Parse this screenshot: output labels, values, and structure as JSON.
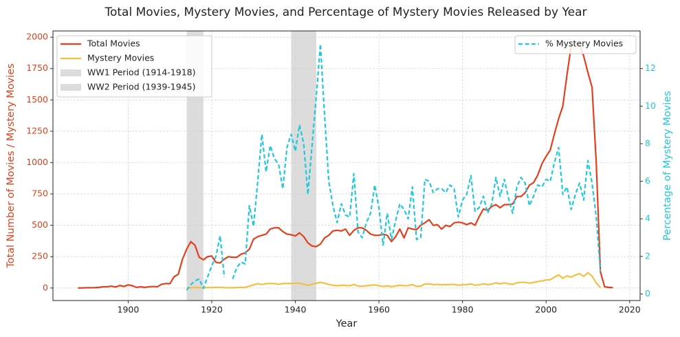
{
  "chart_data": {
    "type": "line",
    "title": "Total Movies, Mystery Movies, and Percentage of Mystery Movies Released by Year",
    "x_label": "Year",
    "y_label": "Total Number of Movies / Mystery Movies",
    "y2_label": "Percentage of Mystery Movies",
    "xlim": [
      1882,
      2022.5
    ],
    "ylim": [
      -100,
      2050
    ],
    "y2lim": [
      -0.35,
      14.0
    ],
    "xticks": [
      1900,
      1920,
      1940,
      1960,
      1980,
      2000,
      2020
    ],
    "yticks": [
      0,
      250,
      500,
      750,
      1000,
      1250,
      1500,
      1750,
      2000
    ],
    "y2ticks": [
      0,
      2,
      4,
      6,
      8,
      10,
      12
    ],
    "grid": true,
    "legend": {
      "y": "upper left",
      "y2": "upper right"
    },
    "x": [
      1888,
      1889,
      1890,
      1891,
      1892,
      1893,
      1894,
      1895,
      1896,
      1897,
      1898,
      1899,
      1900,
      1901,
      1902,
      1903,
      1904,
      1905,
      1906,
      1907,
      1908,
      1909,
      1910,
      1911,
      1912,
      1913,
      1914,
      1915,
      1916,
      1917,
      1918,
      1919,
      1920,
      1921,
      1922,
      1923,
      1924,
      1925,
      1926,
      1927,
      1928,
      1929,
      1930,
      1931,
      1932,
      1933,
      1934,
      1935,
      1936,
      1937,
      1938,
      1939,
      1940,
      1941,
      1942,
      1943,
      1944,
      1945,
      1946,
      1947,
      1948,
      1949,
      1950,
      1951,
      1952,
      1953,
      1954,
      1955,
      1956,
      1957,
      1958,
      1959,
      1960,
      1961,
      1962,
      1963,
      1964,
      1965,
      1966,
      1967,
      1968,
      1969,
      1970,
      1971,
      1972,
      1973,
      1974,
      1975,
      1976,
      1977,
      1978,
      1979,
      1980,
      1981,
      1982,
      1983,
      1984,
      1985,
      1986,
      1987,
      1988,
      1989,
      1990,
      1991,
      1992,
      1993,
      1994,
      1995,
      1996,
      1997,
      1998,
      1999,
      2000,
      2001,
      2002,
      2003,
      2004,
      2005,
      2006,
      2007,
      2008,
      2009,
      2010,
      2011,
      2012,
      2013,
      2014,
      2015,
      2016
    ],
    "series": [
      {
        "name": "Total Movies",
        "color": "#e2401c",
        "axis": "y",
        "dashed": false,
        "values": [
          0,
          1,
          2,
          2,
          3,
          5,
          10,
          10,
          15,
          8,
          20,
          12,
          25,
          18,
          5,
          10,
          5,
          10,
          12,
          10,
          30,
          35,
          35,
          90,
          110,
          230,
          310,
          370,
          340,
          245,
          225,
          250,
          255,
          205,
          200,
          230,
          250,
          245,
          245,
          270,
          280,
          310,
          390,
          410,
          420,
          430,
          470,
          480,
          480,
          450,
          430,
          425,
          415,
          440,
          410,
          360,
          335,
          330,
          350,
          400,
          420,
          455,
          460,
          455,
          470,
          420,
          460,
          480,
          480,
          460,
          430,
          420,
          420,
          430,
          420,
          370,
          410,
          470,
          400,
          480,
          470,
          465,
          500,
          520,
          545,
          500,
          505,
          470,
          500,
          490,
          520,
          525,
          520,
          505,
          520,
          500,
          570,
          630,
          620,
          650,
          665,
          640,
          665,
          665,
          670,
          730,
          730,
          760,
          820,
          840,
          900,
          990,
          1050,
          1100,
          1230,
          1350,
          1450,
          1700,
          1930,
          1950,
          1940,
          1850,
          1720,
          1600,
          1000,
          130,
          10,
          5,
          3
        ]
      },
      {
        "name": "Mystery Movies",
        "color": "#f5c040",
        "axis": "y",
        "dashed": false,
        "values": [
          null,
          null,
          null,
          null,
          null,
          null,
          null,
          null,
          null,
          null,
          null,
          null,
          null,
          null,
          null,
          null,
          null,
          null,
          null,
          null,
          null,
          null,
          null,
          null,
          null,
          null,
          2,
          3,
          4,
          3,
          2,
          3,
          4,
          5,
          6,
          3,
          2,
          2,
          4,
          5,
          5,
          15,
          25,
          35,
          28,
          35,
          36,
          35,
          30,
          35,
          37,
          36,
          38,
          38,
          30,
          20,
          30,
          38,
          45,
          38,
          28,
          22,
          18,
          22,
          20,
          18,
          28,
          16,
          14,
          18,
          22,
          24,
          19,
          12,
          18,
          11,
          16,
          22,
          18,
          19,
          27,
          13,
          15,
          32,
          33,
          27,
          28,
          26,
          27,
          28,
          29,
          22,
          26,
          27,
          33,
          22,
          26,
          33,
          27,
          31,
          41,
          33,
          41,
          34,
          29,
          42,
          45,
          45,
          39,
          44,
          52,
          56,
          64,
          66,
          86,
          105,
          77,
          97,
          87,
          103,
          114,
          93,
          122,
          95,
          41,
          2,
          null,
          null,
          null
        ]
      },
      {
        "name": "% Mystery Movies",
        "color": "#1fc8dc",
        "axis": "y2",
        "dashed": true,
        "values": [
          null,
          null,
          null,
          null,
          null,
          null,
          null,
          null,
          null,
          null,
          null,
          null,
          null,
          null,
          null,
          null,
          null,
          null,
          null,
          null,
          null,
          null,
          null,
          null,
          null,
          null,
          0.2,
          0.5,
          0.7,
          0.8,
          0.3,
          0.9,
          1.5,
          2.0,
          3.1,
          0.9,
          null,
          0.8,
          1.4,
          1.7,
          1.6,
          4.7,
          3.6,
          6.0,
          8.5,
          6.5,
          7.9,
          7.2,
          6.9,
          5.6,
          7.8,
          8.5,
          7.6,
          9.0,
          8.0,
          5.3,
          7.9,
          10.5,
          13.3,
          9.5,
          6.0,
          4.7,
          3.8,
          4.8,
          4.2,
          4.1,
          6.4,
          3.3,
          3.0,
          3.8,
          4.3,
          5.8,
          4.6,
          2.6,
          4.3,
          2.9,
          3.9,
          4.8,
          4.5,
          4.0,
          5.7,
          2.9,
          3.0,
          6.1,
          6.0,
          5.4,
          5.6,
          5.6,
          5.4,
          5.8,
          5.6,
          4.1,
          5.0,
          5.3,
          6.3,
          4.4,
          4.6,
          5.2,
          4.3,
          4.8,
          6.2,
          5.2,
          6.1,
          5.1,
          4.3,
          5.7,
          6.2,
          5.9,
          4.7,
          5.2,
          5.8,
          5.7,
          6.1,
          6.0,
          7.0,
          7.8,
          5.3,
          5.7,
          4.5,
          5.3,
          5.9,
          5.0,
          7.1,
          5.9,
          4.1,
          1.2,
          null,
          null,
          null
        ]
      }
    ],
    "spans": [
      {
        "name": "WW1 Period (1914-1918)",
        "start": 1914,
        "end": 1918,
        "color": "#d3d3d3"
      },
      {
        "name": "WW2 Period (1939-1945)",
        "start": 1939,
        "end": 1945,
        "color": "#d3d3d3"
      }
    ]
  }
}
